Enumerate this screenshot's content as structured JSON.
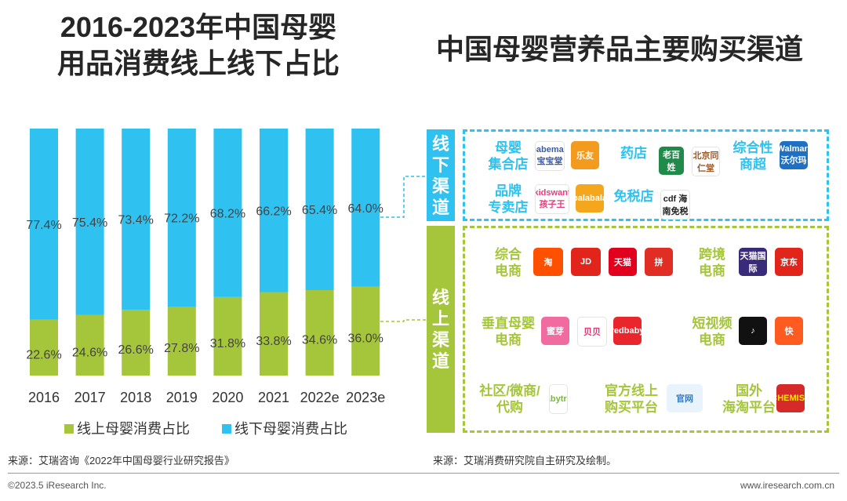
{
  "titles": {
    "left": "2016-2023年中国母婴用品消费线上线下占比",
    "left_line1": "2016-2023年中国母婴",
    "left_line2": "用品消费线上线下占比",
    "right": "中国母婴营养品主要购买渠道"
  },
  "chart_data": {
    "type": "bar",
    "stacked": true,
    "categories": [
      "2016",
      "2017",
      "2018",
      "2019",
      "2020",
      "2021",
      "2022e",
      "2023e"
    ],
    "series": [
      {
        "name": "线上母婴消费占比",
        "color": "#a5c53a",
        "values": [
          22.6,
          24.6,
          26.6,
          27.8,
          31.8,
          33.8,
          34.6,
          36.0
        ],
        "labels": [
          "22.6%",
          "24.6%",
          "26.6%",
          "27.8%",
          "31.8%",
          "33.8%",
          "34.6%",
          "36.0%"
        ]
      },
      {
        "name": "线下母婴消费占比",
        "color": "#2fc1ef",
        "values": [
          77.4,
          75.4,
          73.4,
          72.2,
          68.2,
          66.2,
          65.4,
          64.0
        ],
        "labels": [
          "77.4%",
          "75.4%",
          "73.4%",
          "72.2%",
          "68.2%",
          "66.2%",
          "65.4%",
          "64.0%"
        ]
      }
    ],
    "ylim": [
      0,
      100
    ],
    "legend": "bottom"
  },
  "channels": {
    "offline": {
      "label": "线下渠道",
      "color": "#2fc1ef",
      "categories": [
        {
          "name_l1": "母婴",
          "name_l2": "集合店",
          "logos": [
            {
              "text": "babemax 宝宝堂",
              "color": "#ffffff",
              "fg": "#3a5bb0"
            },
            {
              "text": "乐友",
              "color": "#f39b1f",
              "fg": "#ffffff"
            }
          ]
        },
        {
          "name_l1": "药店",
          "name_l2": "",
          "logos": [
            {
              "text": "老百姓",
              "color": "#1f8a4a",
              "fg": "#ffffff"
            },
            {
              "text": "北京同仁堂",
              "color": "#ffffff",
              "fg": "#9a5a2a"
            }
          ]
        },
        {
          "name_l1": "综合性",
          "name_l2": "商超",
          "logos": [
            {
              "text": "Walmart 沃尔玛",
              "color": "#1f6fc2",
              "fg": "#ffffff"
            }
          ]
        },
        {
          "name_l1": "品牌",
          "name_l2": "专卖店",
          "logos": [
            {
              "text": "kidswant 孩子王",
              "color": "#ffffff",
              "fg": "#e63c7a"
            },
            {
              "text": "balabala",
              "color": "#f4a71d",
              "fg": "#ffffff"
            }
          ]
        },
        {
          "name_l1": "免税店",
          "name_l2": "",
          "logos": [
            {
              "text": "cdf 海南免税",
              "color": "#ffffff",
              "fg": "#222222"
            }
          ]
        }
      ]
    },
    "online": {
      "label": "线上渠道",
      "color": "#a5c53a",
      "categories": [
        {
          "name_l1": "综合",
          "name_l2": "电商",
          "logos": [
            {
              "text": "淘",
              "color": "#ff5000",
              "fg": "#ffffff"
            },
            {
              "text": "JD",
              "color": "#e1251b",
              "fg": "#ffffff"
            },
            {
              "text": "天猫",
              "color": "#e1001d",
              "fg": "#ffffff"
            },
            {
              "text": "拼",
              "color": "#e02e24",
              "fg": "#ffffff"
            }
          ]
        },
        {
          "name_l1": "跨境",
          "name_l2": "电商",
          "logos": [
            {
              "text": "天猫国际",
              "color": "#3a2a7a",
              "fg": "#ffffff"
            },
            {
              "text": "京东",
              "color": "#e1251b",
              "fg": "#ffffff"
            }
          ]
        },
        {
          "name_l1": "垂直母婴",
          "name_l2": "电商",
          "logos": [
            {
              "text": "蜜芽",
              "color": "#f06ca0",
              "fg": "#ffffff"
            },
            {
              "text": "贝贝",
              "color": "#ffffff",
              "fg": "#e2366f"
            },
            {
              "text": "redbaby",
              "color": "#e8262c",
              "fg": "#ffffff"
            }
          ]
        },
        {
          "name_l1": "短视频",
          "name_l2": "电商",
          "logos": [
            {
              "text": "♪",
              "color": "#111111",
              "fg": "#ffffff"
            },
            {
              "text": "快",
              "color": "#ff5a1f",
              "fg": "#ffffff"
            }
          ]
        },
        {
          "name_l1": "社区/微商/",
          "name_l2": "代购",
          "logos": [
            {
              "text": "babytree",
              "color": "#ffffff",
              "fg": "#79b83b"
            }
          ]
        },
        {
          "name_l1": "官方线上",
          "name_l2": "购买平台",
          "logos": [
            {
              "text": "官网",
              "color": "#e8f3fb",
              "fg": "#3a7bbf"
            }
          ]
        },
        {
          "name_l1": "国外",
          "name_l2": "海淘平台",
          "logos": [
            {
              "text": "CHEMIST",
              "color": "#d62a2a",
              "fg": "#ffe400"
            }
          ]
        }
      ]
    }
  },
  "sources": {
    "left": "来源：艾瑞咨询《2022年中国母婴行业研究报告》",
    "right": "来源：艾瑞消费研究院自主研究及绘制。"
  },
  "footer": {
    "copyright": "©2023.5 iResearch Inc.",
    "url": "www.iresearch.com.cn"
  }
}
